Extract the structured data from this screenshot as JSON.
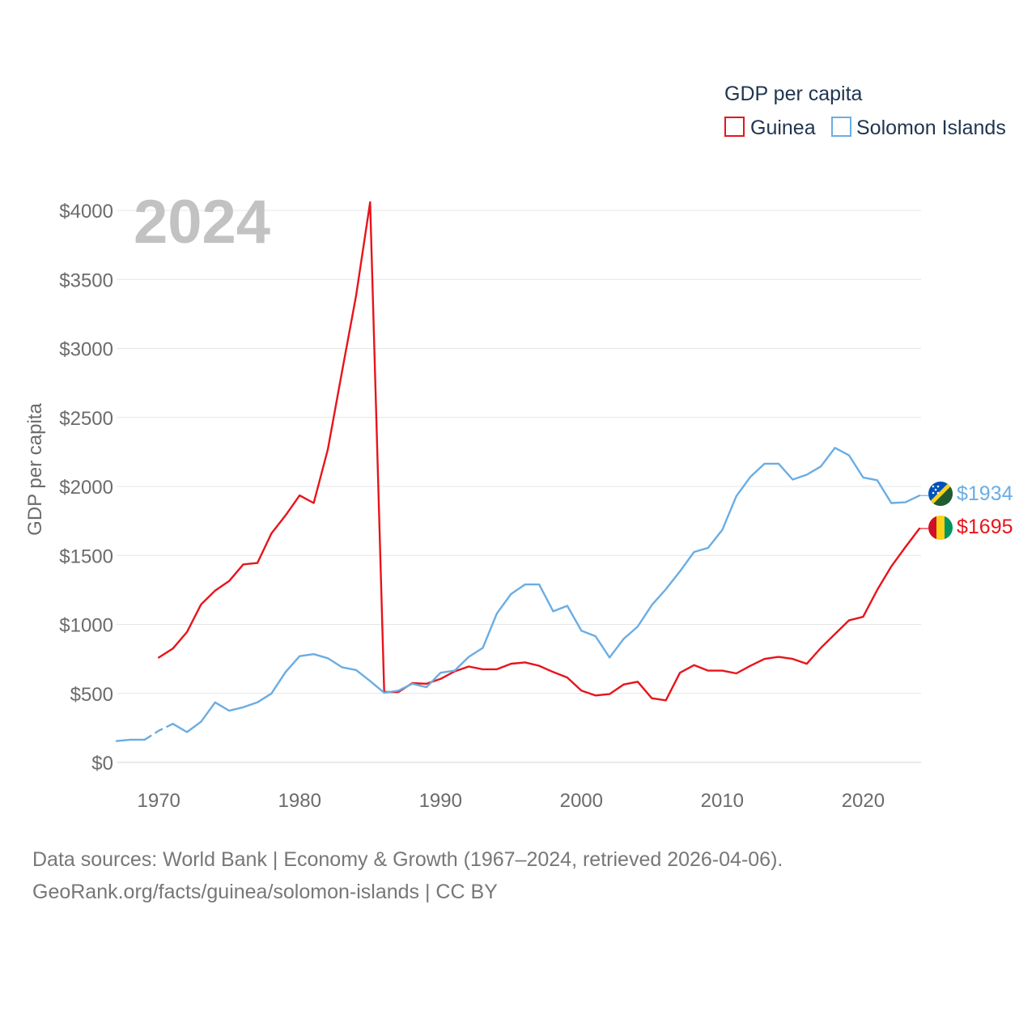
{
  "chart_data": {
    "type": "line",
    "title": "GDP per capita",
    "year_label": "2024",
    "ylabel": "GDP per capita",
    "xlabel": "",
    "xlim": [
      1967,
      2024
    ],
    "ylim": [
      0,
      4000
    ],
    "x_ticks": [
      1970,
      1980,
      1990,
      2000,
      2010,
      2020
    ],
    "y_ticks": [
      {
        "value": 0,
        "label": "$0"
      },
      {
        "value": 500,
        "label": "$500"
      },
      {
        "value": 1000,
        "label": "$1000"
      },
      {
        "value": 1500,
        "label": "$1500"
      },
      {
        "value": 2000,
        "label": "$2000"
      },
      {
        "value": 2500,
        "label": "$2500"
      },
      {
        "value": 3000,
        "label": "$3000"
      },
      {
        "value": 3500,
        "label": "$3500"
      },
      {
        "value": 4000,
        "label": "$4000"
      }
    ],
    "grid": true,
    "legend_position": "top-right",
    "series": [
      {
        "name": "Guinea",
        "color": "#e8141b",
        "end_label": "$1695",
        "flag": "guinea-flag",
        "points": [
          [
            1970,
            760
          ],
          [
            1971,
            825
          ],
          [
            1972,
            945
          ],
          [
            1973,
            1145
          ],
          [
            1974,
            1245
          ],
          [
            1975,
            1315
          ],
          [
            1976,
            1435
          ],
          [
            1977,
            1445
          ],
          [
            1978,
            1660
          ],
          [
            1979,
            1790
          ],
          [
            1980,
            1935
          ],
          [
            1981,
            1880
          ],
          [
            1982,
            2270
          ],
          [
            1983,
            2830
          ],
          [
            1984,
            3380
          ],
          [
            1985,
            4060
          ],
          [
            1986,
            510
          ],
          [
            1987,
            510
          ],
          [
            1988,
            575
          ],
          [
            1989,
            570
          ],
          [
            1990,
            605
          ],
          [
            1991,
            660
          ],
          [
            1992,
            695
          ],
          [
            1993,
            675
          ],
          [
            1994,
            675
          ],
          [
            1995,
            715
          ],
          [
            1996,
            725
          ],
          [
            1997,
            700
          ],
          [
            1998,
            655
          ],
          [
            1999,
            615
          ],
          [
            2000,
            520
          ],
          [
            2001,
            485
          ],
          [
            2002,
            495
          ],
          [
            2003,
            565
          ],
          [
            2004,
            585
          ],
          [
            2005,
            465
          ],
          [
            2006,
            450
          ],
          [
            2007,
            650
          ],
          [
            2008,
            705
          ],
          [
            2009,
            665
          ],
          [
            2010,
            665
          ],
          [
            2011,
            645
          ],
          [
            2012,
            700
          ],
          [
            2013,
            750
          ],
          [
            2014,
            765
          ],
          [
            2015,
            750
          ],
          [
            2016,
            715
          ],
          [
            2017,
            830
          ],
          [
            2018,
            930
          ],
          [
            2019,
            1030
          ],
          [
            2020,
            1055
          ],
          [
            2021,
            1250
          ],
          [
            2022,
            1420
          ],
          [
            2023,
            1560
          ],
          [
            2024,
            1695
          ]
        ]
      },
      {
        "name": "Solomon Islands",
        "color": "#6aade4",
        "end_label": "$1934",
        "flag": "solomon-islands-flag",
        "dashed_ranges": [
          [
            1969,
            1971
          ]
        ],
        "points": [
          [
            1967,
            155
          ],
          [
            1968,
            165
          ],
          [
            1969,
            165
          ],
          [
            1970,
            230
          ],
          [
            1971,
            280
          ],
          [
            1972,
            220
          ],
          [
            1973,
            295
          ],
          [
            1974,
            435
          ],
          [
            1975,
            375
          ],
          [
            1976,
            400
          ],
          [
            1977,
            435
          ],
          [
            1978,
            500
          ],
          [
            1979,
            655
          ],
          [
            1980,
            770
          ],
          [
            1981,
            785
          ],
          [
            1982,
            755
          ],
          [
            1983,
            690
          ],
          [
            1984,
            670
          ],
          [
            1985,
            590
          ],
          [
            1986,
            505
          ],
          [
            1987,
            520
          ],
          [
            1988,
            570
          ],
          [
            1989,
            545
          ],
          [
            1990,
            650
          ],
          [
            1991,
            665
          ],
          [
            1992,
            765
          ],
          [
            1993,
            830
          ],
          [
            1994,
            1080
          ],
          [
            1995,
            1220
          ],
          [
            1996,
            1290
          ],
          [
            1997,
            1290
          ],
          [
            1998,
            1095
          ],
          [
            1999,
            1135
          ],
          [
            2000,
            955
          ],
          [
            2001,
            915
          ],
          [
            2002,
            760
          ],
          [
            2003,
            895
          ],
          [
            2004,
            985
          ],
          [
            2005,
            1140
          ],
          [
            2006,
            1255
          ],
          [
            2007,
            1385
          ],
          [
            2008,
            1525
          ],
          [
            2009,
            1555
          ],
          [
            2010,
            1685
          ],
          [
            2011,
            1930
          ],
          [
            2012,
            2070
          ],
          [
            2013,
            2165
          ],
          [
            2014,
            2165
          ],
          [
            2015,
            2050
          ],
          [
            2016,
            2085
          ],
          [
            2017,
            2145
          ],
          [
            2018,
            2280
          ],
          [
            2019,
            2225
          ],
          [
            2020,
            2065
          ],
          [
            2021,
            2045
          ],
          [
            2022,
            1880
          ],
          [
            2023,
            1885
          ],
          [
            2024,
            1934
          ]
        ]
      }
    ]
  },
  "footer": {
    "line1": "Data sources: World Bank | Economy & Growth (1967–2024, retrieved 2026-04-06).",
    "line2": "GeoRank.org/facts/guinea/solomon-islands | CC BY"
  }
}
